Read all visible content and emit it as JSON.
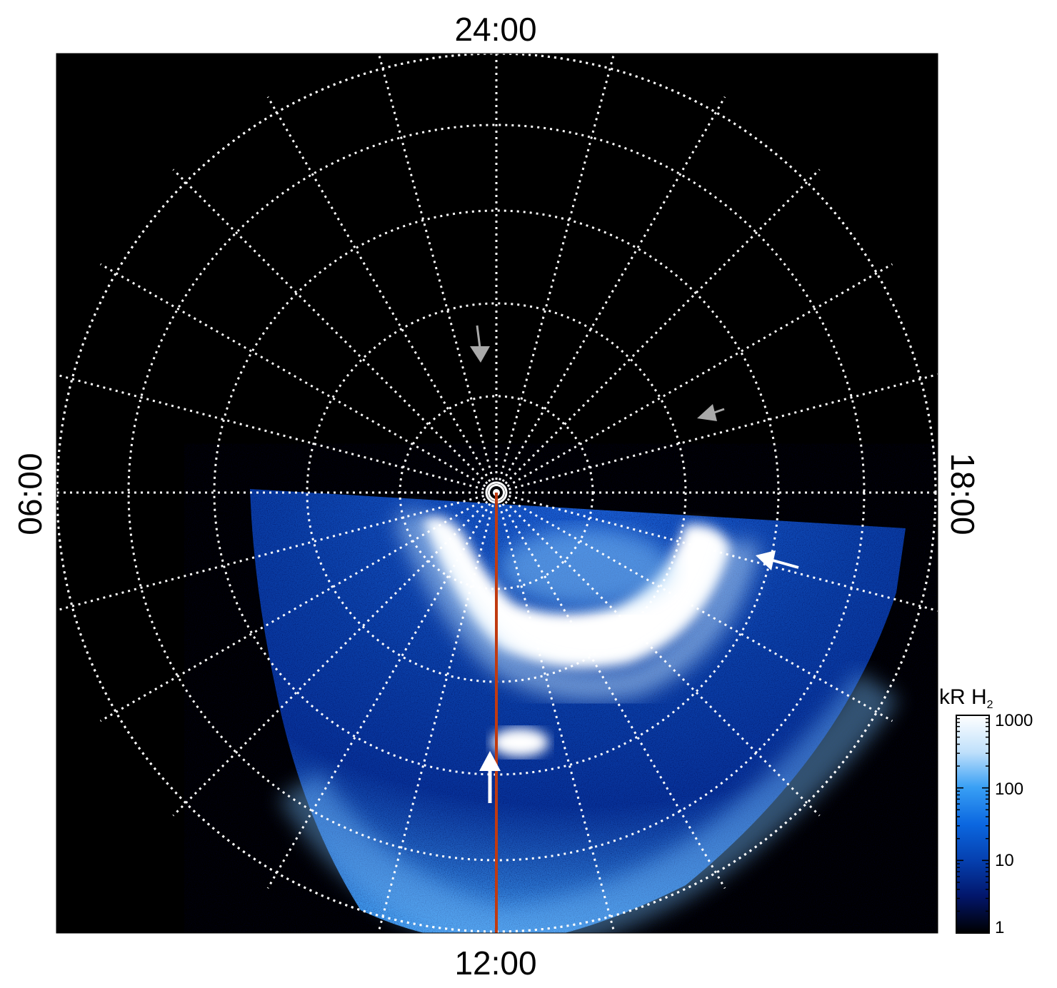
{
  "figure": {
    "local_time_labels": {
      "top": "24:00",
      "bottom": "12:00",
      "left": "06:00",
      "right": "18:00"
    },
    "colorbar": {
      "unit": "kR H",
      "unit_subscript": "2",
      "scale": "log",
      "ticks": [
        "1000",
        "100",
        "10",
        "1"
      ],
      "colors": [
        "#ffffff",
        "#bfe0fb",
        "#39a0f5",
        "#0b67e0",
        "#053fae",
        "#02166b",
        "#000000"
      ]
    },
    "colors": {
      "background": "#000000",
      "grid": "#ffffff",
      "meridian_line": "#c03a10",
      "arrow_white": "#ffffff",
      "arrow_gray": "#a9a9a9"
    },
    "grid": {
      "latitude_circles": 6,
      "meridians": 24
    }
  }
}
